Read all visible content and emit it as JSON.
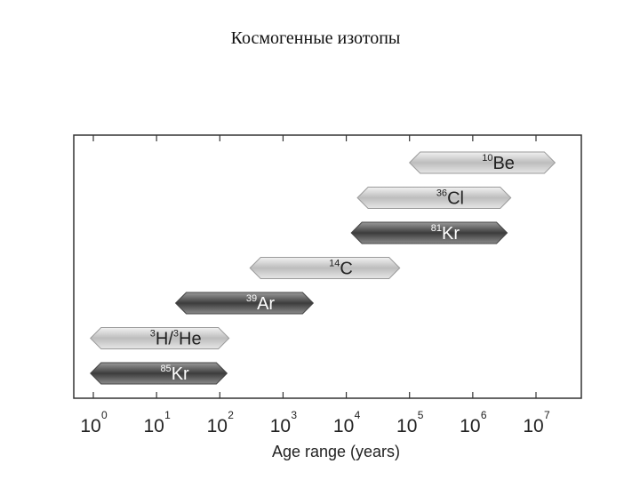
{
  "slide": {
    "title": "Космогенные изотопы"
  },
  "chart_data": {
    "type": "bar",
    "orientation": "horizontal-range",
    "xscale": "log",
    "xlabel": "Age range (years)",
    "xlim": [
      0.6,
      30000000
    ],
    "xticks": [
      {
        "value": 1,
        "label": "10",
        "exp": "0"
      },
      {
        "value": 10,
        "label": "10",
        "exp": "1"
      },
      {
        "value": 100,
        "label": "10",
        "exp": "2"
      },
      {
        "value": 1000,
        "label": "10",
        "exp": "3"
      },
      {
        "value": 10000,
        "label": "10",
        "exp": "4"
      },
      {
        "value": 100000,
        "label": "10",
        "exp": "5"
      },
      {
        "value": 1000000,
        "label": "10",
        "exp": "6"
      },
      {
        "value": 10000000,
        "label": "10",
        "exp": "7"
      }
    ],
    "grid": false,
    "series": [
      {
        "mass": "10",
        "symbol": "Be",
        "from": 100000,
        "to": 20000000,
        "shade": "light"
      },
      {
        "mass": "36",
        "symbol": "Cl",
        "from": 15000,
        "to": 4000000,
        "shade": "light"
      },
      {
        "mass": "81",
        "symbol": "Kr",
        "from": 12000,
        "to": 3500000,
        "shade": "dark"
      },
      {
        "mass": "14",
        "symbol": "C",
        "from": 300,
        "to": 70000,
        "shade": "light"
      },
      {
        "mass": "39",
        "symbol": "Ar",
        "from": 20,
        "to": 3000,
        "shade": "dark"
      },
      {
        "mass": "3",
        "symbol": "H",
        "mass2": "3",
        "symbol2": "He",
        "from": 0.9,
        "to": 140,
        "shade": "light"
      },
      {
        "mass": "85",
        "symbol": "Kr",
        "from": 0.9,
        "to": 130,
        "shade": "dark"
      }
    ]
  }
}
